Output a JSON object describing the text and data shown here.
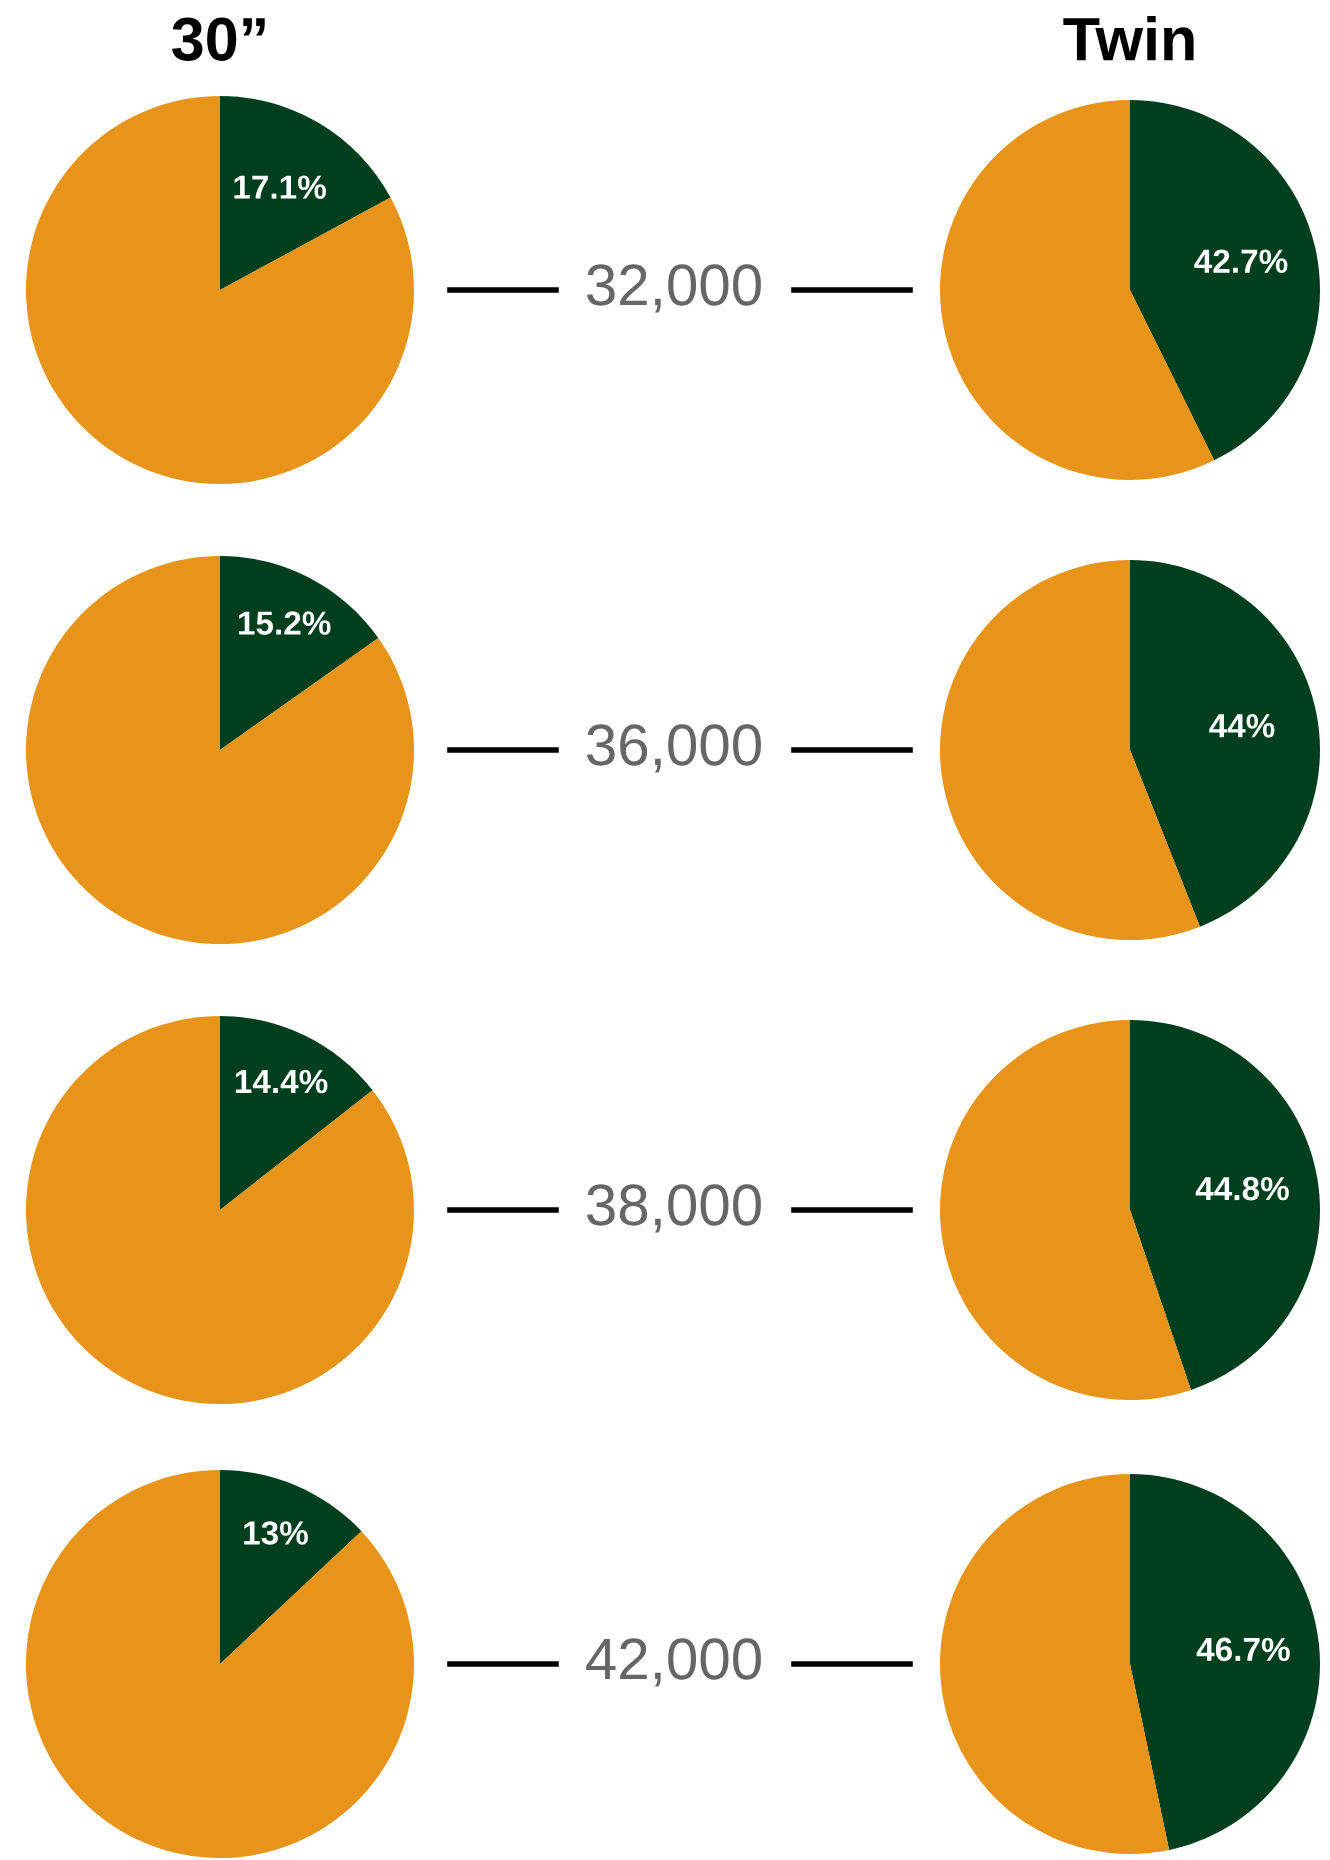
{
  "chart_data": [
    {
      "type": "pie",
      "title": "30”",
      "categories": [
        null,
        null
      ],
      "values": [
        17.1,
        82.9
      ],
      "colors": [
        "#003f1d",
        "#e8941a"
      ],
      "value_labels": [
        "17.1%",
        null
      ],
      "annotations": [
        "32,000"
      ]
    },
    {
      "type": "pie",
      "title": "Twin",
      "categories": [
        null,
        null
      ],
      "values": [
        42.7,
        57.3
      ],
      "colors": [
        "#003f1d",
        "#e8941a"
      ],
      "value_labels": [
        "42.7%",
        null
      ]
    },
    {
      "type": "pie",
      "categories": [
        null,
        null
      ],
      "values": [
        15.2,
        84.8
      ],
      "colors": [
        "#003f1d",
        "#e8941a"
      ],
      "value_labels": [
        "15.2%",
        null
      ],
      "annotations": [
        "36,000"
      ]
    },
    {
      "type": "pie",
      "categories": [
        null,
        null
      ],
      "values": [
        44,
        56
      ],
      "colors": [
        "#003f1d",
        "#e8941a"
      ],
      "value_labels": [
        "44%",
        null
      ]
    },
    {
      "type": "pie",
      "categories": [
        null,
        null
      ],
      "values": [
        14.4,
        85.6
      ],
      "colors": [
        "#003f1d",
        "#e8941a"
      ],
      "value_labels": [
        "14.4%",
        null
      ],
      "annotations": [
        "38,000"
      ]
    },
    {
      "type": "pie",
      "categories": [
        null,
        null
      ],
      "values": [
        44.8,
        55.2
      ],
      "colors": [
        "#003f1d",
        "#e8941a"
      ],
      "value_labels": [
        "44.8%",
        null
      ]
    },
    {
      "type": "pie",
      "categories": [
        null,
        null
      ],
      "values": [
        13,
        87
      ],
      "colors": [
        "#003f1d",
        "#e8941a"
      ],
      "value_labels": [
        "13%",
        null
      ],
      "annotations": [
        "42,000"
      ]
    },
    {
      "type": "pie",
      "categories": [
        null,
        null
      ],
      "values": [
        46.7,
        53.3
      ],
      "colors": [
        "#003f1d",
        "#e8941a"
      ],
      "value_labels": [
        "46.7%",
        null
      ]
    }
  ]
}
